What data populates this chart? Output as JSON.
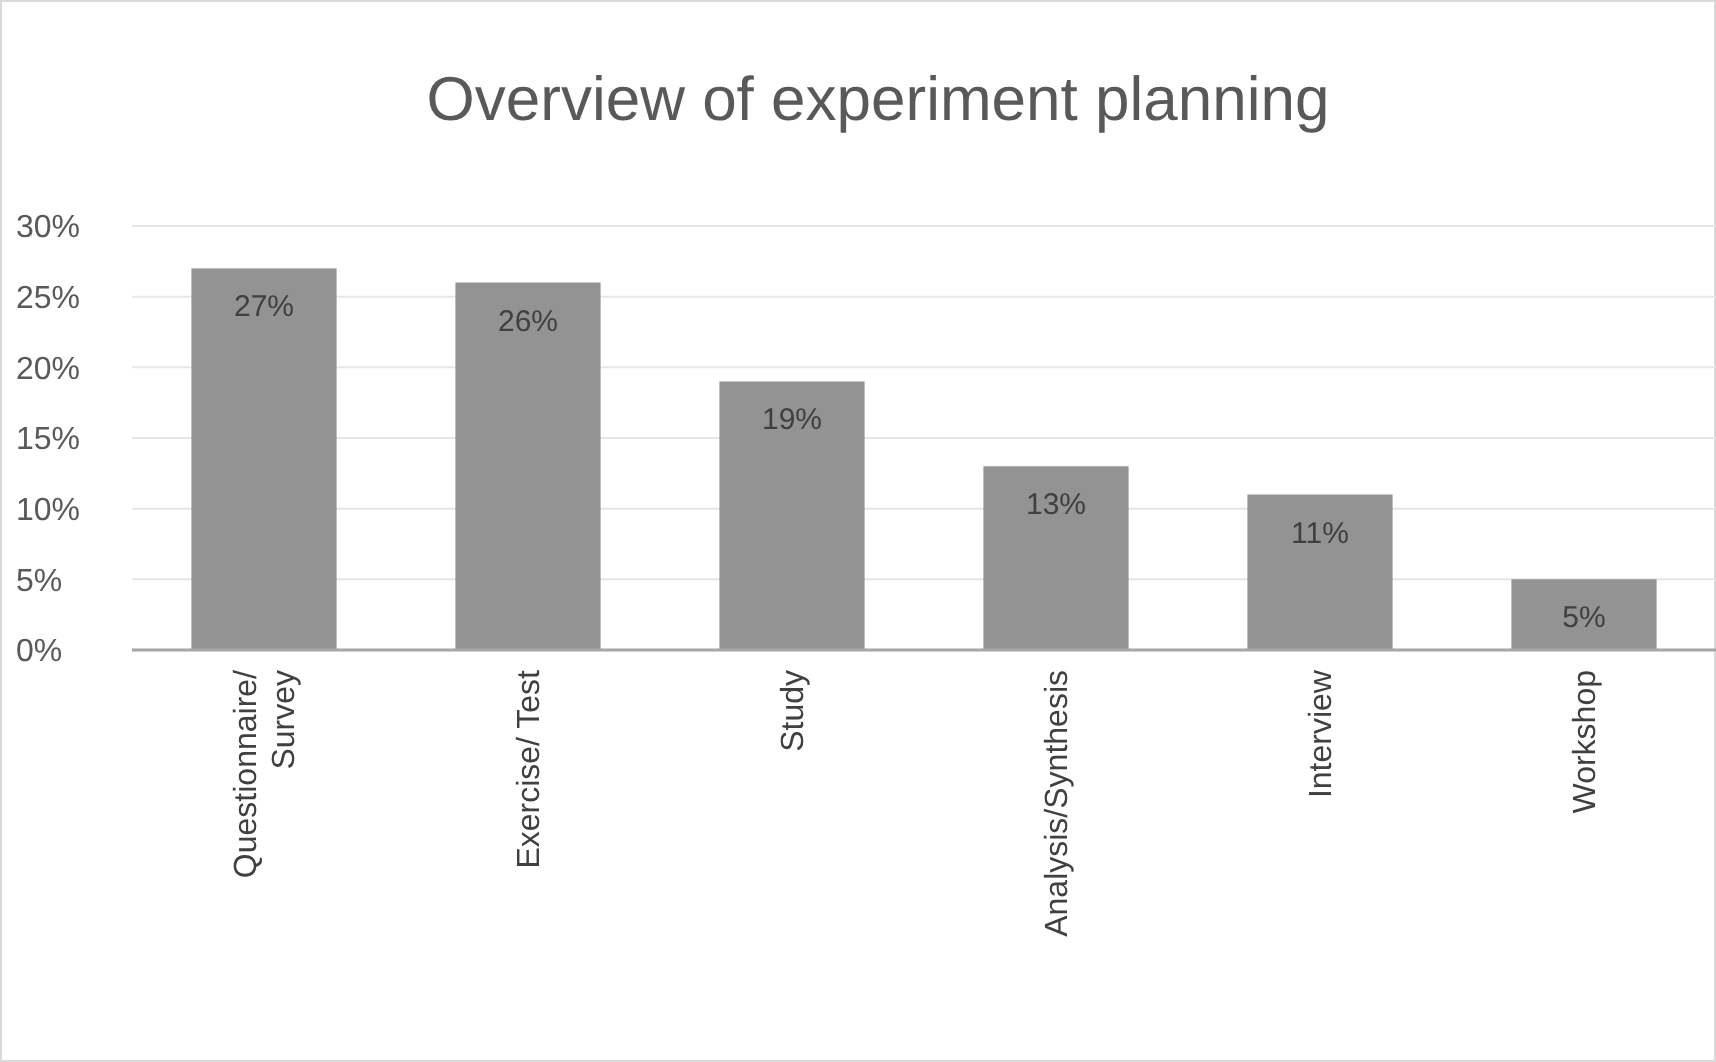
{
  "chart_data": {
    "type": "bar",
    "title": "Overview of experiment planning",
    "categories": [
      "Questionnaire/ Survey",
      "Exercise/ Test",
      "Study",
      "Analysis/Synthesis",
      "Interview",
      "Workshop"
    ],
    "values": [
      27,
      26,
      19,
      13,
      11,
      5
    ],
    "value_labels": [
      "27%",
      "26%",
      "19%",
      "13%",
      "11%",
      "5%"
    ],
    "color": "#939393",
    "ylim": [
      0,
      30
    ],
    "yticks": [
      {
        "value": 0,
        "label": "0%"
      },
      {
        "value": 5,
        "label": "5%"
      },
      {
        "value": 10,
        "label": "10%"
      },
      {
        "value": 15,
        "label": "15%"
      },
      {
        "value": 20,
        "label": "20%"
      },
      {
        "value": 25,
        "label": "25%"
      },
      {
        "value": 30,
        "label": "30%"
      }
    ],
    "grid": true
  }
}
